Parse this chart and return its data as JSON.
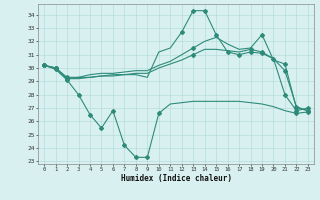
{
  "title": "",
  "xlabel": "Humidex (Indice chaleur)",
  "x": [
    0,
    1,
    2,
    3,
    4,
    5,
    6,
    7,
    8,
    9,
    10,
    11,
    12,
    13,
    14,
    15,
    16,
    17,
    18,
    19,
    20,
    21,
    22,
    23
  ],
  "line1": [
    30.2,
    30.0,
    29.2,
    29.2,
    29.3,
    29.4,
    29.5,
    29.5,
    29.5,
    29.3,
    31.2,
    31.5,
    32.7,
    34.3,
    34.3,
    32.5,
    31.2,
    31.0,
    31.2,
    31.1,
    30.7,
    28.0,
    26.8,
    27.0
  ],
  "line2": [
    30.2,
    30.0,
    29.2,
    29.3,
    29.5,
    29.6,
    29.6,
    29.7,
    29.8,
    29.8,
    30.2,
    30.5,
    31.0,
    31.5,
    32.0,
    32.3,
    31.8,
    31.4,
    31.5,
    32.5,
    30.6,
    30.3,
    27.0,
    26.8
  ],
  "line3": [
    30.2,
    29.9,
    29.1,
    28.0,
    26.5,
    25.5,
    26.8,
    24.2,
    23.3,
    23.3,
    26.6,
    27.3,
    27.4,
    27.5,
    27.5,
    27.5,
    27.5,
    27.5,
    27.4,
    27.3,
    27.1,
    26.8,
    26.6,
    26.7
  ],
  "line4": [
    30.2,
    30.0,
    29.3,
    29.3,
    29.3,
    29.4,
    29.4,
    29.5,
    29.6,
    29.6,
    30.0,
    30.3,
    30.6,
    31.0,
    31.4,
    31.4,
    31.3,
    31.2,
    31.4,
    31.2,
    30.7,
    29.8,
    27.1,
    26.8
  ],
  "line_color": "#2e8b7a",
  "bg_color": "#d8f0f0",
  "grid_color": "#b0d8d8",
  "markers_line1": [
    0,
    1,
    2,
    12,
    13,
    14,
    15,
    16,
    17,
    18,
    19,
    20,
    21,
    22,
    23
  ],
  "markers_line2": [
    0,
    1,
    2,
    13,
    19,
    21,
    22,
    23
  ],
  "markers_line3": [
    0,
    1,
    2,
    3,
    4,
    5,
    6,
    7,
    8,
    9,
    10,
    22,
    23
  ],
  "markers_line4": [
    0,
    1,
    2,
    13,
    18,
    19,
    21,
    22,
    23
  ]
}
